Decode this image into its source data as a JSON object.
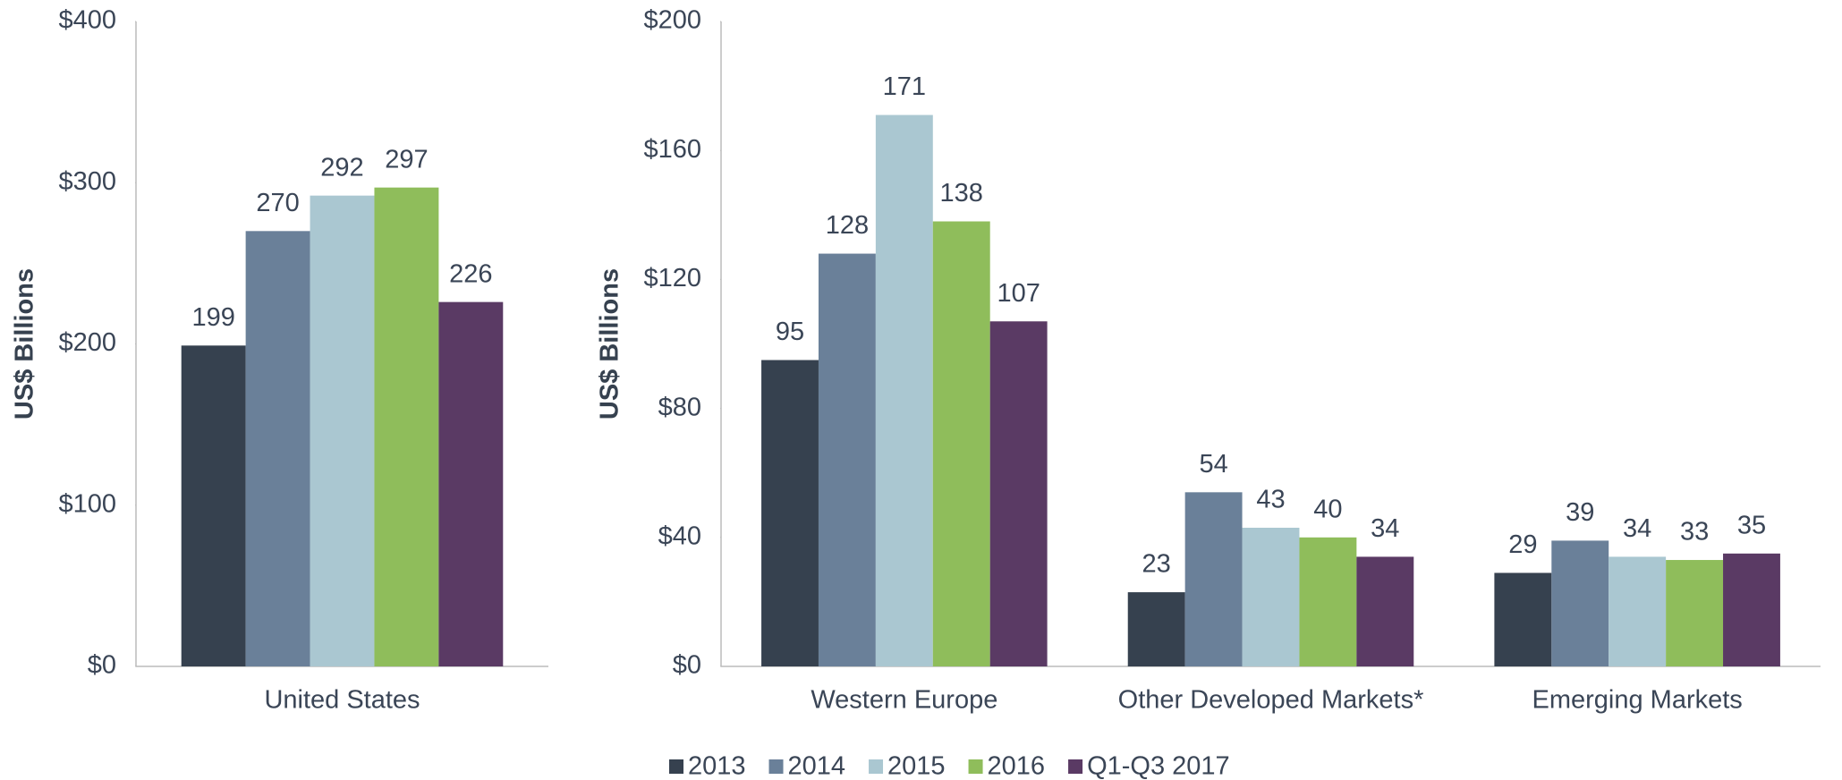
{
  "chart_data": [
    {
      "type": "bar",
      "y_label": "US$ Billions",
      "categories": [
        "United States"
      ],
      "series": [
        {
          "color": "#36414f",
          "values": [
            199
          ]
        },
        {
          "color": "#6a8099",
          "values": [
            270
          ]
        },
        {
          "color": "#aac7d1",
          "values": [
            292
          ]
        },
        {
          "color": "#8fbd5b",
          "values": [
            297
          ]
        },
        {
          "color": "#5a3a64",
          "values": [
            226
          ]
        }
      ],
      "ylim": [
        0,
        400
      ],
      "yticks": [
        {
          "value": 0,
          "label": "$0"
        },
        {
          "value": 100,
          "label": "$100"
        },
        {
          "value": 200,
          "label": "$200"
        },
        {
          "value": 300,
          "label": "$300"
        },
        {
          "value": 400,
          "label": "$400"
        }
      ]
    },
    {
      "type": "bar",
      "y_label": "US$ Billions",
      "categories": [
        "Western Europe",
        "Other Developed Markets*",
        "Emerging Markets"
      ],
      "series": [
        {
          "name": "2013",
          "color": "#36414f",
          "values": [
            95,
            23,
            29
          ]
        },
        {
          "name": "2014",
          "color": "#6a8099",
          "values": [
            128,
            54,
            39
          ]
        },
        {
          "name": "2015",
          "color": "#aac7d1",
          "values": [
            171,
            43,
            34
          ]
        },
        {
          "name": "2016",
          "color": "#8fbd5b",
          "values": [
            138,
            40,
            33
          ]
        },
        {
          "name": "Q1-Q3 2017",
          "color": "#5a3a64",
          "values": [
            107,
            34,
            35
          ]
        }
      ],
      "ylim": [
        0,
        200
      ],
      "yticks": [
        {
          "value": 0,
          "label": "$0"
        },
        {
          "value": 40,
          "label": "$40"
        },
        {
          "value": 80,
          "label": "$80"
        },
        {
          "value": 120,
          "label": "$120"
        },
        {
          "value": 160,
          "label": "$160"
        },
        {
          "value": 200,
          "label": "$200"
        }
      ]
    }
  ]
}
